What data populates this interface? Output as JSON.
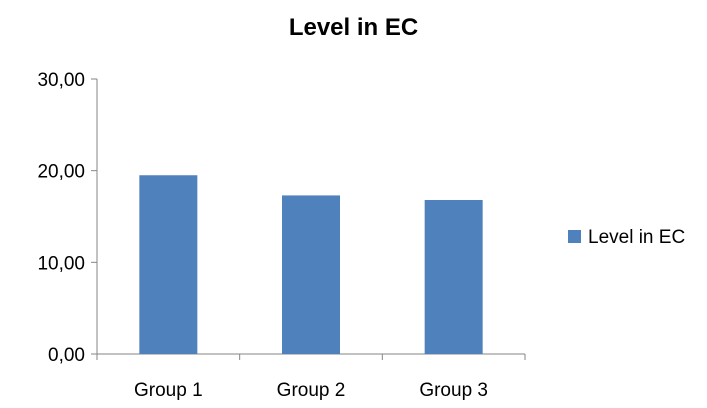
{
  "chart_data": {
    "type": "bar",
    "title": "Level in EC",
    "xlabel": "",
    "ylabel": "",
    "categories": [
      "Group 1",
      "Group 2",
      "Group 3"
    ],
    "series": [
      {
        "name": "Level in EC",
        "values": [
          19.5,
          17.3,
          16.8
        ],
        "color": "#4F81BD"
      }
    ],
    "ylim": [
      0,
      30
    ],
    "yticks": [
      0,
      10,
      20,
      30
    ],
    "ytick_labels": [
      "0,00",
      "10,00",
      "20,00",
      "30,00"
    ],
    "grid": false,
    "legend": {
      "position": "right",
      "entries": [
        "Level in EC"
      ]
    },
    "axis_color": "#868686"
  }
}
